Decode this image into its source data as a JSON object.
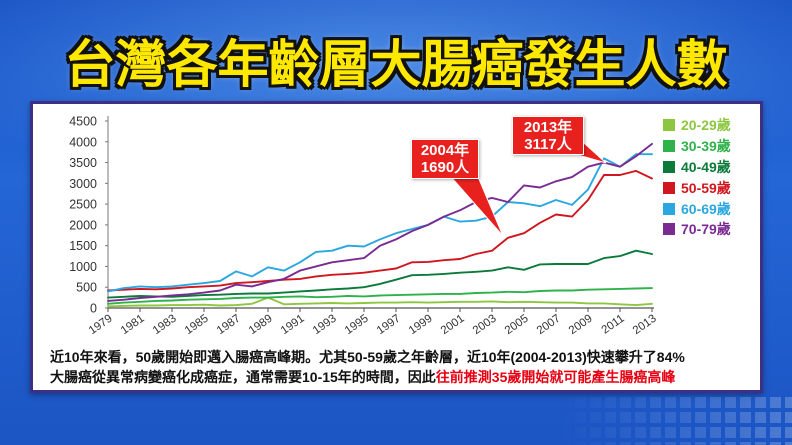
{
  "chart_data": {
    "type": "line",
    "title": "台灣各年齡層大腸癌發生人數",
    "x": [
      1979,
      1980,
      1981,
      1982,
      1983,
      1984,
      1985,
      1986,
      1987,
      1988,
      1989,
      1990,
      1991,
      1992,
      1993,
      1994,
      1995,
      1996,
      1997,
      1998,
      1999,
      2000,
      2001,
      2002,
      2003,
      2004,
      2005,
      2006,
      2007,
      2008,
      2009,
      2010,
      2011,
      2012,
      2013
    ],
    "x_ticks": [
      1979,
      1981,
      1983,
      1985,
      1987,
      1989,
      1991,
      1993,
      1995,
      1997,
      1999,
      2001,
      2003,
      2005,
      2007,
      2009,
      2011,
      2013
    ],
    "y_ticks": [
      0,
      500,
      1000,
      1500,
      2000,
      2500,
      3000,
      3500,
      4000,
      4500
    ],
    "xlim": [
      1979,
      2013
    ],
    "ylim": [
      0,
      4500
    ],
    "grid": false,
    "legend_position": "right",
    "series": [
      {
        "name": "20-29歲",
        "color": "#8dc63f",
        "values": [
          40,
          50,
          60,
          60,
          70,
          70,
          80,
          60,
          70,
          100,
          250,
          90,
          100,
          110,
          120,
          110,
          120,
          130,
          130,
          140,
          130,
          140,
          150,
          150,
          160,
          140,
          150,
          140,
          130,
          130,
          110,
          110,
          90,
          70,
          100
        ]
      },
      {
        "name": "30-39歲",
        "color": "#2fb24a",
        "values": [
          100,
          130,
          150,
          170,
          180,
          200,
          210,
          220,
          240,
          250,
          250,
          270,
          280,
          260,
          270,
          290,
          280,
          300,
          310,
          320,
          330,
          340,
          340,
          360,
          370,
          390,
          380,
          410,
          420,
          420,
          440,
          450,
          460,
          470,
          480
        ]
      },
      {
        "name": "40-49歲",
        "color": "#0b7a3a",
        "values": [
          250,
          270,
          290,
          280,
          270,
          290,
          310,
          320,
          340,
          350,
          350,
          370,
          400,
          420,
          450,
          470,
          500,
          580,
          680,
          790,
          800,
          820,
          850,
          870,
          900,
          980,
          920,
          1050,
          1060,
          1060,
          1060,
          1200,
          1250,
          1380,
          1300
        ]
      },
      {
        "name": "50-59歲",
        "color": "#d0161e",
        "values": [
          420,
          440,
          460,
          450,
          470,
          500,
          520,
          540,
          600,
          620,
          650,
          680,
          700,
          760,
          800,
          820,
          850,
          900,
          950,
          1100,
          1110,
          1150,
          1180,
          1300,
          1380,
          1690,
          1800,
          2050,
          2250,
          2200,
          2600,
          3200,
          3200,
          3300,
          3117
        ]
      },
      {
        "name": "60-69歲",
        "color": "#2aa7e0",
        "values": [
          400,
          480,
          520,
          500,
          520,
          560,
          600,
          650,
          880,
          760,
          980,
          900,
          1100,
          1350,
          1380,
          1500,
          1480,
          1650,
          1800,
          1900,
          2000,
          2200,
          2080,
          2100,
          2200,
          2550,
          2520,
          2450,
          2600,
          2480,
          2850,
          3600,
          3400,
          3700,
          3700
        ]
      },
      {
        "name": "70-79歲",
        "color": "#7a2b92",
        "values": [
          170,
          200,
          240,
          270,
          300,
          330,
          370,
          420,
          560,
          520,
          620,
          700,
          900,
          1000,
          1100,
          1150,
          1200,
          1500,
          1650,
          1850,
          2000,
          2200,
          2350,
          2550,
          2650,
          2550,
          2950,
          2900,
          3050,
          3150,
          3400,
          3500,
          3400,
          3650,
          3950
        ]
      }
    ],
    "annotations": [
      {
        "lines": [
          "2004年",
          "1690人"
        ]
      },
      {
        "lines": [
          "2013年",
          "3117人"
        ]
      }
    ]
  },
  "notes": {
    "line1": "近10年來看，50歲開始即邁入腸癌高峰期。尤其50-59歲之年齡層，近10年(2004-2013)快速攀升了84%",
    "line2_prefix": "大腸癌從異常病變癌化成癌症，通常需要10-15年的時間，因此",
    "line2_highlight": "往前推測35歲開始就可能產生腸癌高峰",
    "highlight_color": "#e60012"
  }
}
